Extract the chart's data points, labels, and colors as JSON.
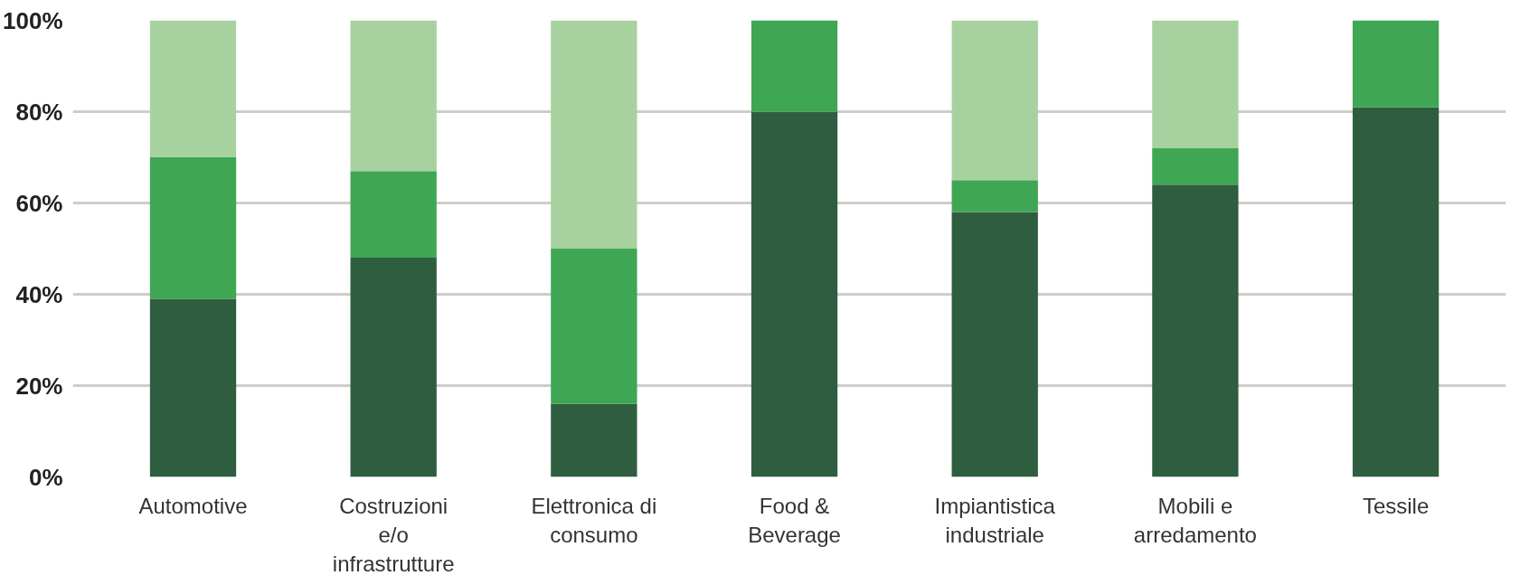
{
  "chart_data": {
    "type": "bar",
    "stacked": true,
    "categories": [
      "Automotive",
      "Costruzioni e/o infrastrutture",
      "Elettronica di consumo",
      "Food & Beverage",
      "Impiantistica industriale",
      "Mobili e arredamento",
      "Tessile"
    ],
    "series": [
      {
        "color": "#2e5e3f",
        "values": [
          39,
          48,
          16,
          80,
          58,
          64,
          81
        ]
      },
      {
        "color": "#3fa654",
        "values": [
          31,
          19,
          34,
          20,
          7,
          8,
          19
        ]
      },
      {
        "color": "#a8d1a0",
        "values": [
          30,
          33,
          50,
          0,
          35,
          28,
          0
        ]
      }
    ],
    "ylim": [
      0,
      100
    ],
    "yticks": [
      {
        "value": 0,
        "label": "0%"
      },
      {
        "value": 20,
        "label": "20%"
      },
      {
        "value": 40,
        "label": "40%"
      },
      {
        "value": 60,
        "label": "60%"
      },
      {
        "value": 80,
        "label": "80%"
      },
      {
        "value": 100,
        "label": "100%"
      }
    ],
    "grid": "y"
  }
}
